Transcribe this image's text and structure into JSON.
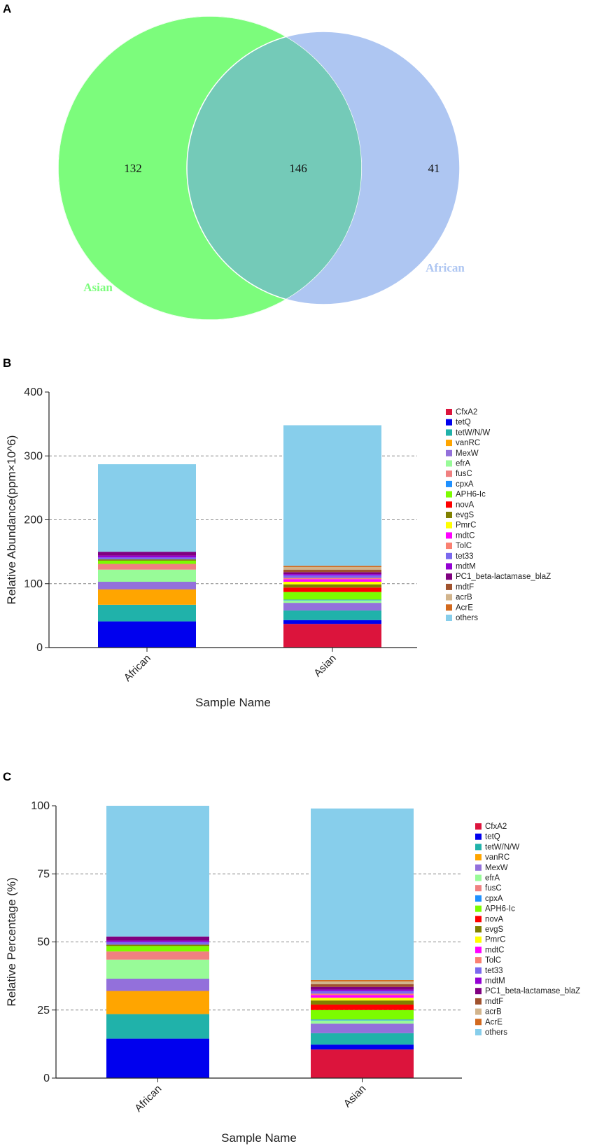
{
  "chart_data": [
    {
      "type": "venn",
      "panel": "A",
      "sets": [
        {
          "name": "Asian",
          "color": "#7cfc7c"
        },
        {
          "name": "African",
          "color": "#aec6f2"
        }
      ],
      "counts": {
        "Asian_only": 132,
        "shared": 146,
        "African_only": 41
      },
      "overlap_color": "#74cab8"
    },
    {
      "type": "bar",
      "stacked": true,
      "panel": "B",
      "xlabel": "Sample Name",
      "ylabel": "Relative Abundance(ppm×10^6)",
      "ylim": [
        0,
        400
      ],
      "yticks": [
        0,
        100,
        200,
        300,
        400
      ],
      "categories": [
        "African",
        "Asian"
      ],
      "series": [
        {
          "name": "CfxA2",
          "color": "#dc143c",
          "values": [
            0,
            37
          ]
        },
        {
          "name": "tetQ",
          "color": "#0000ee",
          "values": [
            41,
            6
          ]
        },
        {
          "name": "tetW/N/W",
          "color": "#20b2aa",
          "values": [
            26,
            15
          ]
        },
        {
          "name": "vanRC",
          "color": "#ffa500",
          "values": [
            24,
            0
          ]
        },
        {
          "name": "MexW",
          "color": "#9370db",
          "values": [
            12,
            12
          ]
        },
        {
          "name": "efrA",
          "color": "#98fb98",
          "values": [
            19,
            4
          ]
        },
        {
          "name": "fusC",
          "color": "#f08080",
          "values": [
            9,
            0
          ]
        },
        {
          "name": "cpxA",
          "color": "#1e90ff",
          "values": [
            0,
            1
          ]
        },
        {
          "name": "APH6-Ic",
          "color": "#7cfc00",
          "values": [
            5,
            12
          ]
        },
        {
          "name": "novA",
          "color": "#ff0000",
          "values": [
            0,
            7
          ]
        },
        {
          "name": "evgS",
          "color": "#808000",
          "values": [
            2,
            5
          ]
        },
        {
          "name": "PmrC",
          "color": "#ffff00",
          "values": [
            0,
            4
          ]
        },
        {
          "name": "mdtC",
          "color": "#ff00ff",
          "values": [
            0,
            4
          ]
        },
        {
          "name": "TolC",
          "color": "#fa8072",
          "values": [
            0,
            2
          ]
        },
        {
          "name": "tet33",
          "color": "#7b68ee",
          "values": [
            3,
            4
          ]
        },
        {
          "name": "mdtM",
          "color": "#9400d3",
          "values": [
            3,
            2
          ]
        },
        {
          "name": "PC1_beta-lactamase_blaZ",
          "color": "#800080",
          "values": [
            6,
            3
          ]
        },
        {
          "name": "mdtF",
          "color": "#a0522d",
          "values": [
            0,
            4
          ]
        },
        {
          "name": "acrB",
          "color": "#d2b48c",
          "values": [
            0,
            4
          ]
        },
        {
          "name": "AcrE",
          "color": "#d2691e",
          "values": [
            0,
            2
          ]
        },
        {
          "name": "others",
          "color": "#87ceeb",
          "values": [
            137,
            220
          ]
        }
      ]
    },
    {
      "type": "bar",
      "stacked": true,
      "panel": "C",
      "xlabel": "Sample Name",
      "ylabel": "Relative Percentage (%)",
      "ylim": [
        0,
        100
      ],
      "yticks": [
        0,
        25,
        50,
        75,
        100
      ],
      "categories": [
        "African",
        "Asian"
      ],
      "series": [
        {
          "name": "CfxA2",
          "color": "#dc143c",
          "values": [
            0,
            10.5
          ]
        },
        {
          "name": "tetQ",
          "color": "#0000ee",
          "values": [
            14.5,
            1.8
          ]
        },
        {
          "name": "tetW/N/W",
          "color": "#20b2aa",
          "values": [
            9.0,
            4.2
          ]
        },
        {
          "name": "vanRC",
          "color": "#ffa500",
          "values": [
            8.5,
            0
          ]
        },
        {
          "name": "MexW",
          "color": "#9370db",
          "values": [
            4.5,
            3.5
          ]
        },
        {
          "name": "efrA",
          "color": "#98fb98",
          "values": [
            7.0,
            1.2
          ]
        },
        {
          "name": "fusC",
          "color": "#f08080",
          "values": [
            3.0,
            0
          ]
        },
        {
          "name": "cpxA",
          "color": "#1e90ff",
          "values": [
            0,
            0.3
          ]
        },
        {
          "name": "APH6-Ic",
          "color": "#7cfc00",
          "values": [
            2.0,
            3.5
          ]
        },
        {
          "name": "novA",
          "color": "#ff0000",
          "values": [
            0,
            2.0
          ]
        },
        {
          "name": "evgS",
          "color": "#808000",
          "values": [
            0.5,
            1.5
          ]
        },
        {
          "name": "PmrC",
          "color": "#ffff00",
          "values": [
            0,
            1.0
          ]
        },
        {
          "name": "mdtC",
          "color": "#ff00ff",
          "values": [
            0,
            1.0
          ]
        },
        {
          "name": "TolC",
          "color": "#fa8072",
          "values": [
            0,
            0.5
          ]
        },
        {
          "name": "tet33",
          "color": "#7b68ee",
          "values": [
            1.0,
            1.0
          ]
        },
        {
          "name": "mdtM",
          "color": "#9400d3",
          "values": [
            0.5,
            0.5
          ]
        },
        {
          "name": "PC1_beta-lactamase_blaZ",
          "color": "#800080",
          "values": [
            1.5,
            1.0
          ]
        },
        {
          "name": "mdtF",
          "color": "#a0522d",
          "values": [
            0,
            1.0
          ]
        },
        {
          "name": "acrB",
          "color": "#d2b48c",
          "values": [
            0,
            1.0
          ]
        },
        {
          "name": "AcrE",
          "color": "#d2691e",
          "values": [
            0,
            0.5
          ]
        },
        {
          "name": "others",
          "color": "#87ceeb",
          "values": [
            48.0,
            63.0
          ]
        }
      ]
    }
  ]
}
